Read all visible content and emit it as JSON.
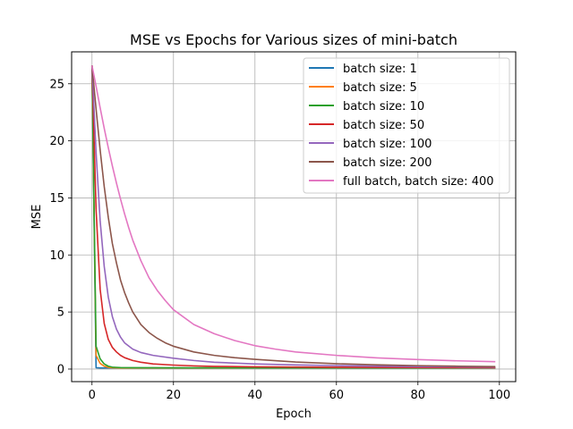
{
  "chart_data": {
    "type": "line",
    "title": "MSE vs Epochs for Various sizes of mini-batch",
    "xlabel": "Epoch",
    "ylabel": "MSE",
    "xlim": [
      -5,
      104
    ],
    "ylim": [
      -1.1,
      27.8
    ],
    "xticks": [
      0,
      20,
      40,
      60,
      80,
      100
    ],
    "yticks": [
      0,
      5,
      10,
      15,
      20,
      25
    ],
    "grid": true,
    "legend_position": "top-right",
    "series": [
      {
        "name": "batch size: 1",
        "color": "#1f77b4",
        "x": [
          0,
          1,
          2,
          3,
          5,
          10,
          20,
          40,
          60,
          80,
          99
        ],
        "y": [
          26.6,
          0.12,
          0.1,
          0.1,
          0.1,
          0.1,
          0.1,
          0.1,
          0.1,
          0.1,
          0.1
        ]
      },
      {
        "name": "batch size: 5",
        "color": "#ff7f0e",
        "x": [
          0,
          1,
          2,
          3,
          4,
          5,
          7,
          10,
          20,
          40,
          60,
          80,
          99
        ],
        "y": [
          26.6,
          1.2,
          0.5,
          0.25,
          0.15,
          0.12,
          0.1,
          0.1,
          0.1,
          0.1,
          0.1,
          0.1,
          0.1
        ]
      },
      {
        "name": "batch size: 10",
        "color": "#2ca02c",
        "x": [
          0,
          1,
          2,
          3,
          4,
          5,
          7,
          10,
          20,
          40,
          60,
          80,
          99
        ],
        "y": [
          26.6,
          2.0,
          0.9,
          0.45,
          0.25,
          0.17,
          0.13,
          0.12,
          0.11,
          0.1,
          0.1,
          0.1,
          0.1
        ]
      },
      {
        "name": "batch size: 50",
        "color": "#d62728",
        "x": [
          0,
          1,
          2,
          3,
          4,
          5,
          6,
          7,
          8,
          10,
          12,
          15,
          20,
          25,
          30,
          40,
          60,
          80,
          99
        ],
        "y": [
          26.6,
          14.0,
          7.0,
          4.0,
          2.6,
          1.9,
          1.5,
          1.2,
          1.0,
          0.75,
          0.6,
          0.45,
          0.35,
          0.28,
          0.24,
          0.2,
          0.16,
          0.14,
          0.12
        ]
      },
      {
        "name": "batch size: 100",
        "color": "#9467bd",
        "x": [
          0,
          1,
          2,
          3,
          4,
          5,
          6,
          7,
          8,
          10,
          12,
          15,
          20,
          25,
          30,
          40,
          50,
          60,
          70,
          80,
          90,
          99
        ],
        "y": [
          26.6,
          19.0,
          13.0,
          9.0,
          6.3,
          4.6,
          3.5,
          2.8,
          2.3,
          1.75,
          1.45,
          1.2,
          0.95,
          0.75,
          0.6,
          0.45,
          0.36,
          0.3,
          0.26,
          0.22,
          0.2,
          0.18
        ]
      },
      {
        "name": "batch size: 200",
        "color": "#8c564b",
        "x": [
          0,
          1,
          2,
          3,
          4,
          5,
          6,
          7,
          8,
          9,
          10,
          12,
          14,
          16,
          18,
          20,
          25,
          30,
          35,
          40,
          50,
          60,
          70,
          80,
          90,
          99
        ],
        "y": [
          26.6,
          22.8,
          19.2,
          16.0,
          13.3,
          11.0,
          9.3,
          7.8,
          6.7,
          5.8,
          5.0,
          3.9,
          3.2,
          2.7,
          2.3,
          2.0,
          1.5,
          1.2,
          1.0,
          0.85,
          0.62,
          0.47,
          0.37,
          0.3,
          0.25,
          0.22
        ]
      },
      {
        "name": "full batch, batch size: 400",
        "color": "#e377c2",
        "x": [
          0,
          1,
          2,
          3,
          4,
          5,
          6,
          7,
          8,
          9,
          10,
          12,
          14,
          16,
          18,
          20,
          25,
          30,
          35,
          40,
          45,
          50,
          60,
          70,
          80,
          90,
          99
        ],
        "y": [
          26.6,
          24.8,
          22.9,
          21.1,
          19.4,
          17.8,
          16.3,
          14.9,
          13.6,
          12.4,
          11.3,
          9.5,
          8.0,
          6.9,
          6.0,
          5.2,
          3.9,
          3.1,
          2.5,
          2.05,
          1.75,
          1.5,
          1.2,
          0.98,
          0.83,
          0.72,
          0.65
        ]
      }
    ]
  }
}
